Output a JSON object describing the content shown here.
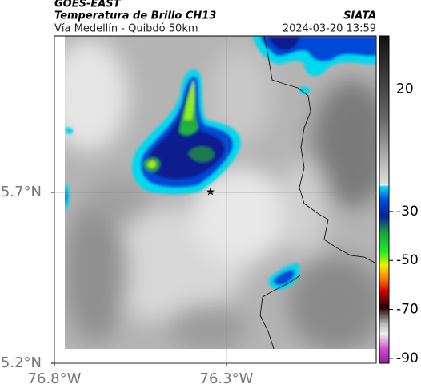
{
  "header": {
    "source": "GOES-EAST",
    "title": "Temperatura de Brillo CH13",
    "subtitle": "Vía Medellín - Quibdó 50km",
    "org": "SIATA",
    "timestamp": "2024-03-20 13:59"
  },
  "chart_data": {
    "type": "map",
    "xlim": [
      -76.8,
      -75.865
    ],
    "ylim": [
      5.2,
      6.158
    ],
    "xticks": [
      {
        "value": -76.8,
        "label": "76.8°W"
      },
      {
        "value": -76.3,
        "label": "76.3°W"
      }
    ],
    "yticks": [
      {
        "value": 5.7,
        "label": "5.7°N"
      },
      {
        "value": 5.2,
        "label": "5.2°N"
      }
    ],
    "colorbar": {
      "lim": [
        -92,
        41.7
      ],
      "ticks": [
        20,
        -30,
        -50,
        -70,
        -90
      ]
    }
  }
}
